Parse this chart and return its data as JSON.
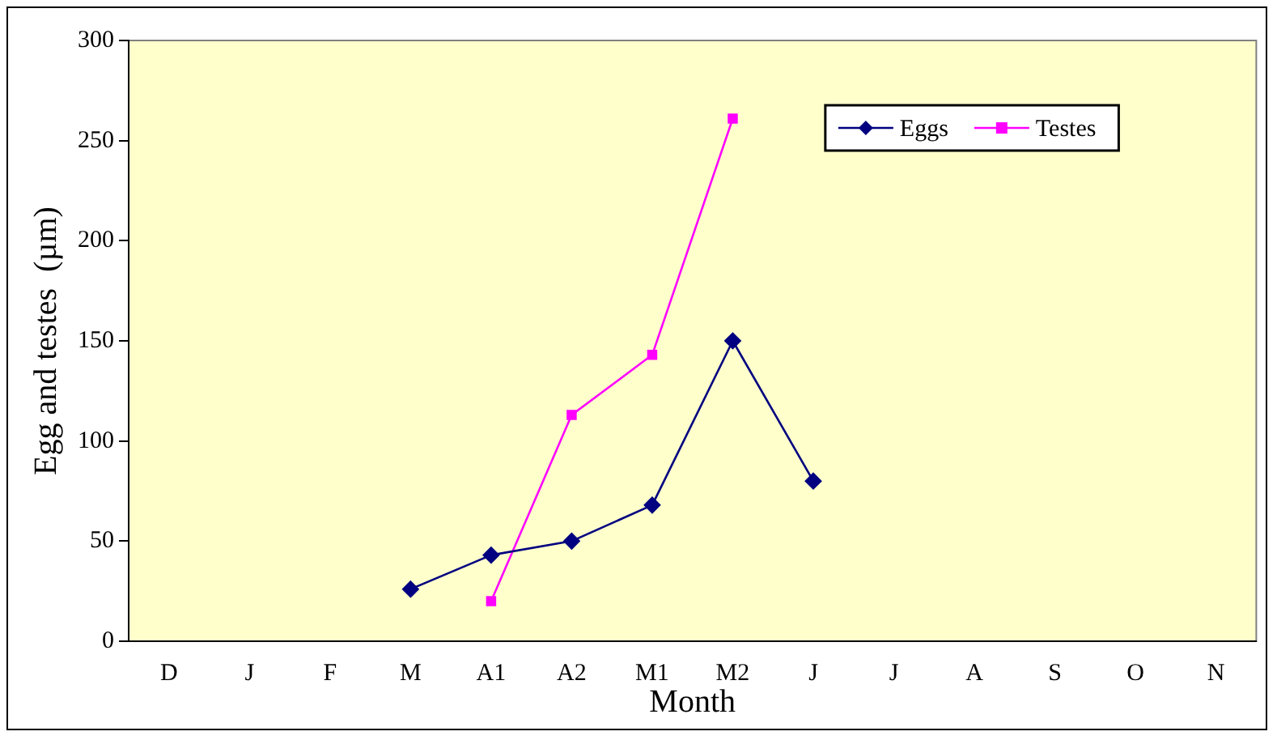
{
  "chart_data": {
    "type": "line",
    "xlabel": "Month",
    "ylabel": "Egg and testes  (µm)",
    "categories": [
      "D",
      "J",
      "F",
      "M",
      "A1",
      "A2",
      "M1",
      "M2",
      "J",
      "J",
      "A",
      "S",
      "O",
      "N"
    ],
    "series": [
      {
        "name": "Eggs",
        "color": "#000080",
        "marker": "diamond",
        "values": [
          null,
          null,
          null,
          26,
          43,
          50,
          68,
          150,
          80,
          null,
          null,
          null,
          null,
          null
        ]
      },
      {
        "name": "Testes",
        "color": "#ff00ff",
        "marker": "square",
        "values": [
          null,
          null,
          null,
          null,
          20,
          113,
          143,
          261,
          null,
          null,
          null,
          null,
          null,
          null
        ]
      }
    ],
    "ylim": [
      0,
      300
    ],
    "yticks": [
      0,
      50,
      100,
      150,
      200,
      250,
      300
    ],
    "grid": false,
    "legend": "top right"
  }
}
